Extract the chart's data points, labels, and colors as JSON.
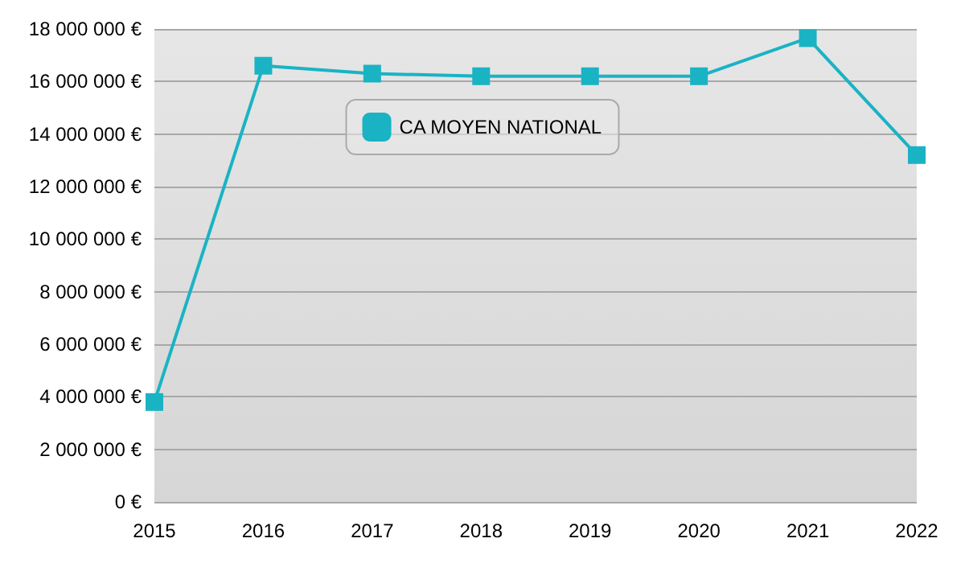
{
  "chart_data": {
    "type": "line",
    "categories": [
      "2015",
      "2016",
      "2017",
      "2018",
      "2019",
      "2020",
      "2021",
      "2022"
    ],
    "series": [
      {
        "name": "CA MOYEN NATIONAL",
        "color": "#1ab3c4",
        "values": [
          3800000,
          16600000,
          16300000,
          16200000,
          16200000,
          16200000,
          17650000,
          13200000
        ]
      }
    ],
    "ylim": [
      0,
      18000000
    ],
    "yticks": [
      {
        "value": 0,
        "label": "0 €"
      },
      {
        "value": 2000000,
        "label": "2 000 000 €"
      },
      {
        "value": 4000000,
        "label": "4 000 000 €"
      },
      {
        "value": 6000000,
        "label": "6 000 000 €"
      },
      {
        "value": 8000000,
        "label": "8 000 000 €"
      },
      {
        "value": 10000000,
        "label": "10 000 000 €"
      },
      {
        "value": 12000000,
        "label": "12 000 000 €"
      },
      {
        "value": 14000000,
        "label": "14 000 000 €"
      },
      {
        "value": 16000000,
        "label": "16 000 000 €"
      },
      {
        "value": 18000000,
        "label": "18 000 000 €"
      }
    ],
    "grid": "y",
    "legend": "top",
    "marker": "square",
    "line_style": "solid"
  }
}
